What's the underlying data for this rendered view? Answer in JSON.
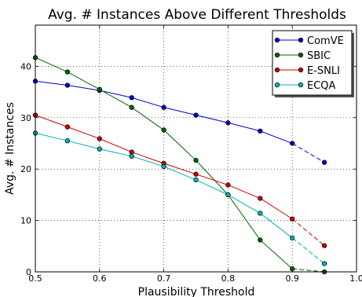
{
  "chart_data": {
    "type": "line",
    "title": "Avg. # Instances Above Different Thresholds",
    "xlabel": "Plausibility Threshold",
    "ylabel": "Avg. # Instances",
    "xlim": [
      0.5,
      1.0
    ],
    "ylim": [
      0,
      48
    ],
    "xticks": [
      "0.5",
      "0.6",
      "0.7",
      "0.8",
      "0.9",
      "1.0"
    ],
    "xtick_values": [
      0.5,
      0.6,
      0.7,
      0.8,
      0.9,
      1.0
    ],
    "yticks": [
      "0",
      "10",
      "20",
      "30",
      "40"
    ],
    "ytick_values": [
      0,
      10,
      20,
      30,
      40
    ],
    "grid": true,
    "legend_position": "top-right",
    "x": [
      0.5,
      0.55,
      0.6,
      0.65,
      0.7,
      0.75,
      0.8,
      0.85,
      0.9,
      0.95
    ],
    "dashed_from_index": 8,
    "series": [
      {
        "name": "ComVE",
        "color": "#0000cc",
        "values": [
          37.1,
          36.3,
          35.3,
          33.9,
          32.0,
          30.5,
          29.0,
          27.4,
          25.0,
          21.3
        ]
      },
      {
        "name": "SBIC",
        "color": "#006400",
        "values": [
          41.7,
          38.9,
          35.5,
          32.0,
          27.6,
          21.7,
          15.0,
          6.2,
          0.6,
          0.0
        ]
      },
      {
        "name": "E-SNLI",
        "color": "#cc0000",
        "values": [
          30.5,
          28.2,
          25.9,
          23.3,
          21.1,
          19.0,
          16.9,
          14.3,
          10.3,
          5.1
        ]
      },
      {
        "name": "ECQA",
        "color": "#00b3b3",
        "values": [
          27.0,
          25.5,
          23.9,
          22.5,
          20.5,
          17.9,
          15.0,
          11.4,
          6.6,
          1.6
        ]
      }
    ]
  }
}
